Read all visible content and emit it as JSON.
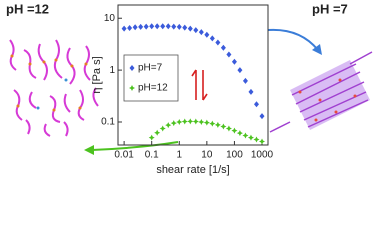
{
  "chart_data": {
    "type": "scatter",
    "x_label": "shear rate [1/s]",
    "y_label": "η [Pa s]",
    "x": [
      0.01,
      0.0158,
      0.0251,
      0.0398,
      0.0631,
      0.1,
      0.158,
      0.251,
      0.398,
      0.631,
      1,
      1.58,
      2.51,
      3.98,
      6.31,
      10,
      15.8,
      25.1,
      39.8,
      63.1,
      100,
      158,
      251,
      398,
      631,
      1000
    ],
    "series": [
      {
        "name": "pH=7",
        "color": "#3b5bdb",
        "marker": "diamond",
        "values": [
          6.3,
          6.5,
          6.7,
          6.8,
          6.9,
          7.0,
          7.0,
          7.0,
          7.0,
          6.9,
          6.8,
          6.6,
          6.3,
          5.9,
          5.4,
          4.8,
          4.1,
          3.4,
          2.7,
          2.0,
          1.45,
          1.0,
          0.62,
          0.38,
          0.22,
          0.13
        ]
      },
      {
        "name": "pH=12",
        "color": "#4cc21f",
        "marker": "star",
        "values": [
          null,
          null,
          null,
          null,
          null,
          0.05,
          0.062,
          0.075,
          0.087,
          0.095,
          0.1,
          0.102,
          0.103,
          0.102,
          0.1,
          0.097,
          0.093,
          0.088,
          0.082,
          0.075,
          0.068,
          0.061,
          0.055,
          0.05,
          0.046,
          0.042
        ]
      }
    ],
    "log_x": true,
    "log_y": true,
    "xlim": [
      0.006,
      1650
    ],
    "ylim": [
      0.036,
      18
    ],
    "xticks": [
      0.01,
      0.1,
      1,
      10,
      100,
      1000
    ],
    "yticks": [
      0.1,
      1,
      10
    ],
    "legend": "left",
    "annotations": [
      "pH =12",
      "pH =7"
    ]
  }
}
